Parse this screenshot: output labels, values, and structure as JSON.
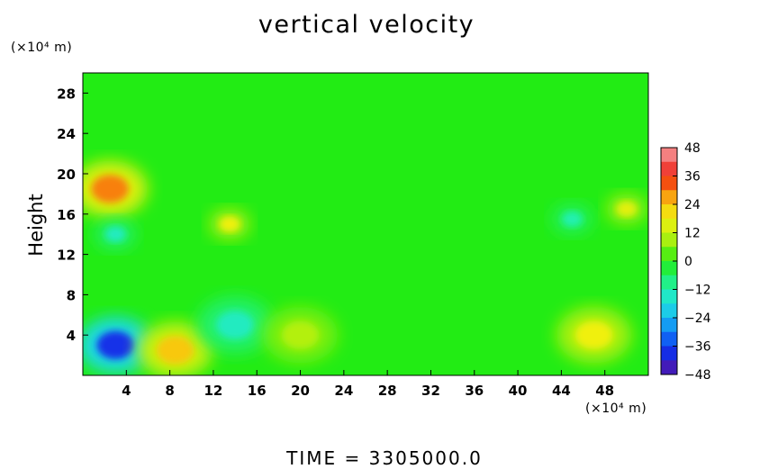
{
  "chart_data": {
    "type": "heatmap",
    "title": "vertical velocity",
    "ylabel": "Height",
    "xlabel": "",
    "x_unit": "(×10⁴ m)",
    "y_unit": "(×10⁴ m)",
    "xlim": [
      0,
      52
    ],
    "ylim": [
      0,
      30
    ],
    "x_ticks": [
      4,
      8,
      12,
      16,
      20,
      24,
      28,
      32,
      36,
      40,
      44,
      48
    ],
    "y_ticks": [
      4,
      8,
      12,
      16,
      20,
      24,
      28
    ],
    "colorbar": {
      "ticks": [
        48,
        36,
        24,
        12,
        0,
        -12,
        -24,
        -36,
        -48
      ],
      "range": [
        -48,
        48
      ]
    },
    "features": [
      {
        "x": 3,
        "y": 3,
        "value": -38
      },
      {
        "x": 8.5,
        "y": 2.5,
        "value": 24
      },
      {
        "x": 14,
        "y": 5,
        "value": -14
      },
      {
        "x": 20,
        "y": 4,
        "value": 10
      },
      {
        "x": 47,
        "y": 4,
        "value": 18
      },
      {
        "x": 2.5,
        "y": 18.5,
        "value": 30
      },
      {
        "x": 13.5,
        "y": 15,
        "value": 18
      },
      {
        "x": 3,
        "y": 14,
        "value": -14
      },
      {
        "x": 45,
        "y": 15.5,
        "value": -12
      },
      {
        "x": 50,
        "y": 16.5,
        "value": 16
      }
    ],
    "grid": false
  },
  "footer": {
    "time_label": "TIME  =  3305000.0"
  }
}
